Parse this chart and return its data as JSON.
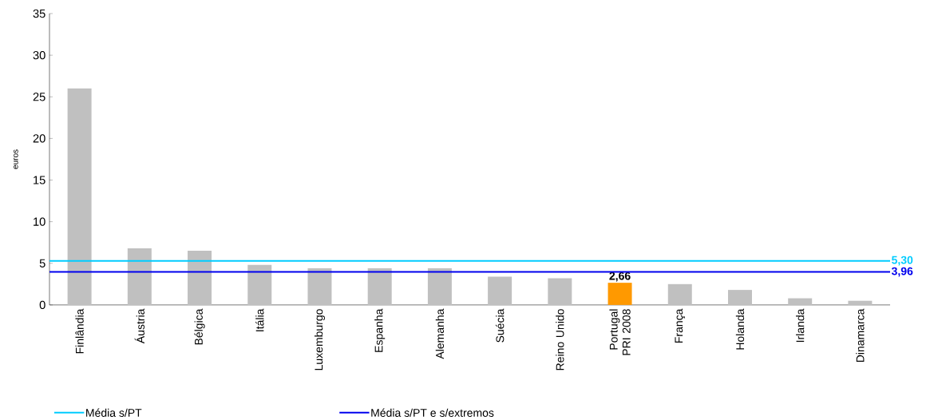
{
  "chart_data": {
    "type": "bar",
    "ylabel": "euros",
    "categories": [
      "Finlândia",
      "Áustria",
      "Bélgica",
      "Itália",
      "Luxemburgo",
      "Espanha",
      "Alemanha",
      "Suécia",
      "Reino Unido",
      "Portugal PRI 2008",
      "França",
      "Holanda",
      "Irlanda",
      "Dinamarca"
    ],
    "values": [
      26.0,
      6.8,
      6.5,
      4.8,
      4.4,
      4.4,
      4.4,
      3.4,
      3.2,
      2.66,
      2.5,
      1.8,
      0.8,
      0.5
    ],
    "colors": [
      "#c0c0c0",
      "#c0c0c0",
      "#c0c0c0",
      "#c0c0c0",
      "#c0c0c0",
      "#c0c0c0",
      "#c0c0c0",
      "#c0c0c0",
      "#c0c0c0",
      "#ff9900",
      "#c0c0c0",
      "#c0c0c0",
      "#c0c0c0",
      "#c0c0c0"
    ],
    "value_labels": [
      null,
      null,
      null,
      null,
      null,
      null,
      null,
      null,
      null,
      "2,66",
      null,
      null,
      null,
      null
    ],
    "ylim": [
      0,
      35
    ],
    "yticks": [
      0,
      5,
      10,
      15,
      20,
      25,
      30,
      35
    ],
    "ref_lines": [
      {
        "axis": "y",
        "value": 5.3,
        "label": "Média s/PT",
        "color": "#00ccff"
      },
      {
        "axis": "y",
        "value": 3.96,
        "label": "Média s/PT e s/extremos",
        "color": "#0000ee"
      }
    ],
    "annotations": [
      "5,30",
      "3,96"
    ],
    "legend": "bottom left"
  }
}
